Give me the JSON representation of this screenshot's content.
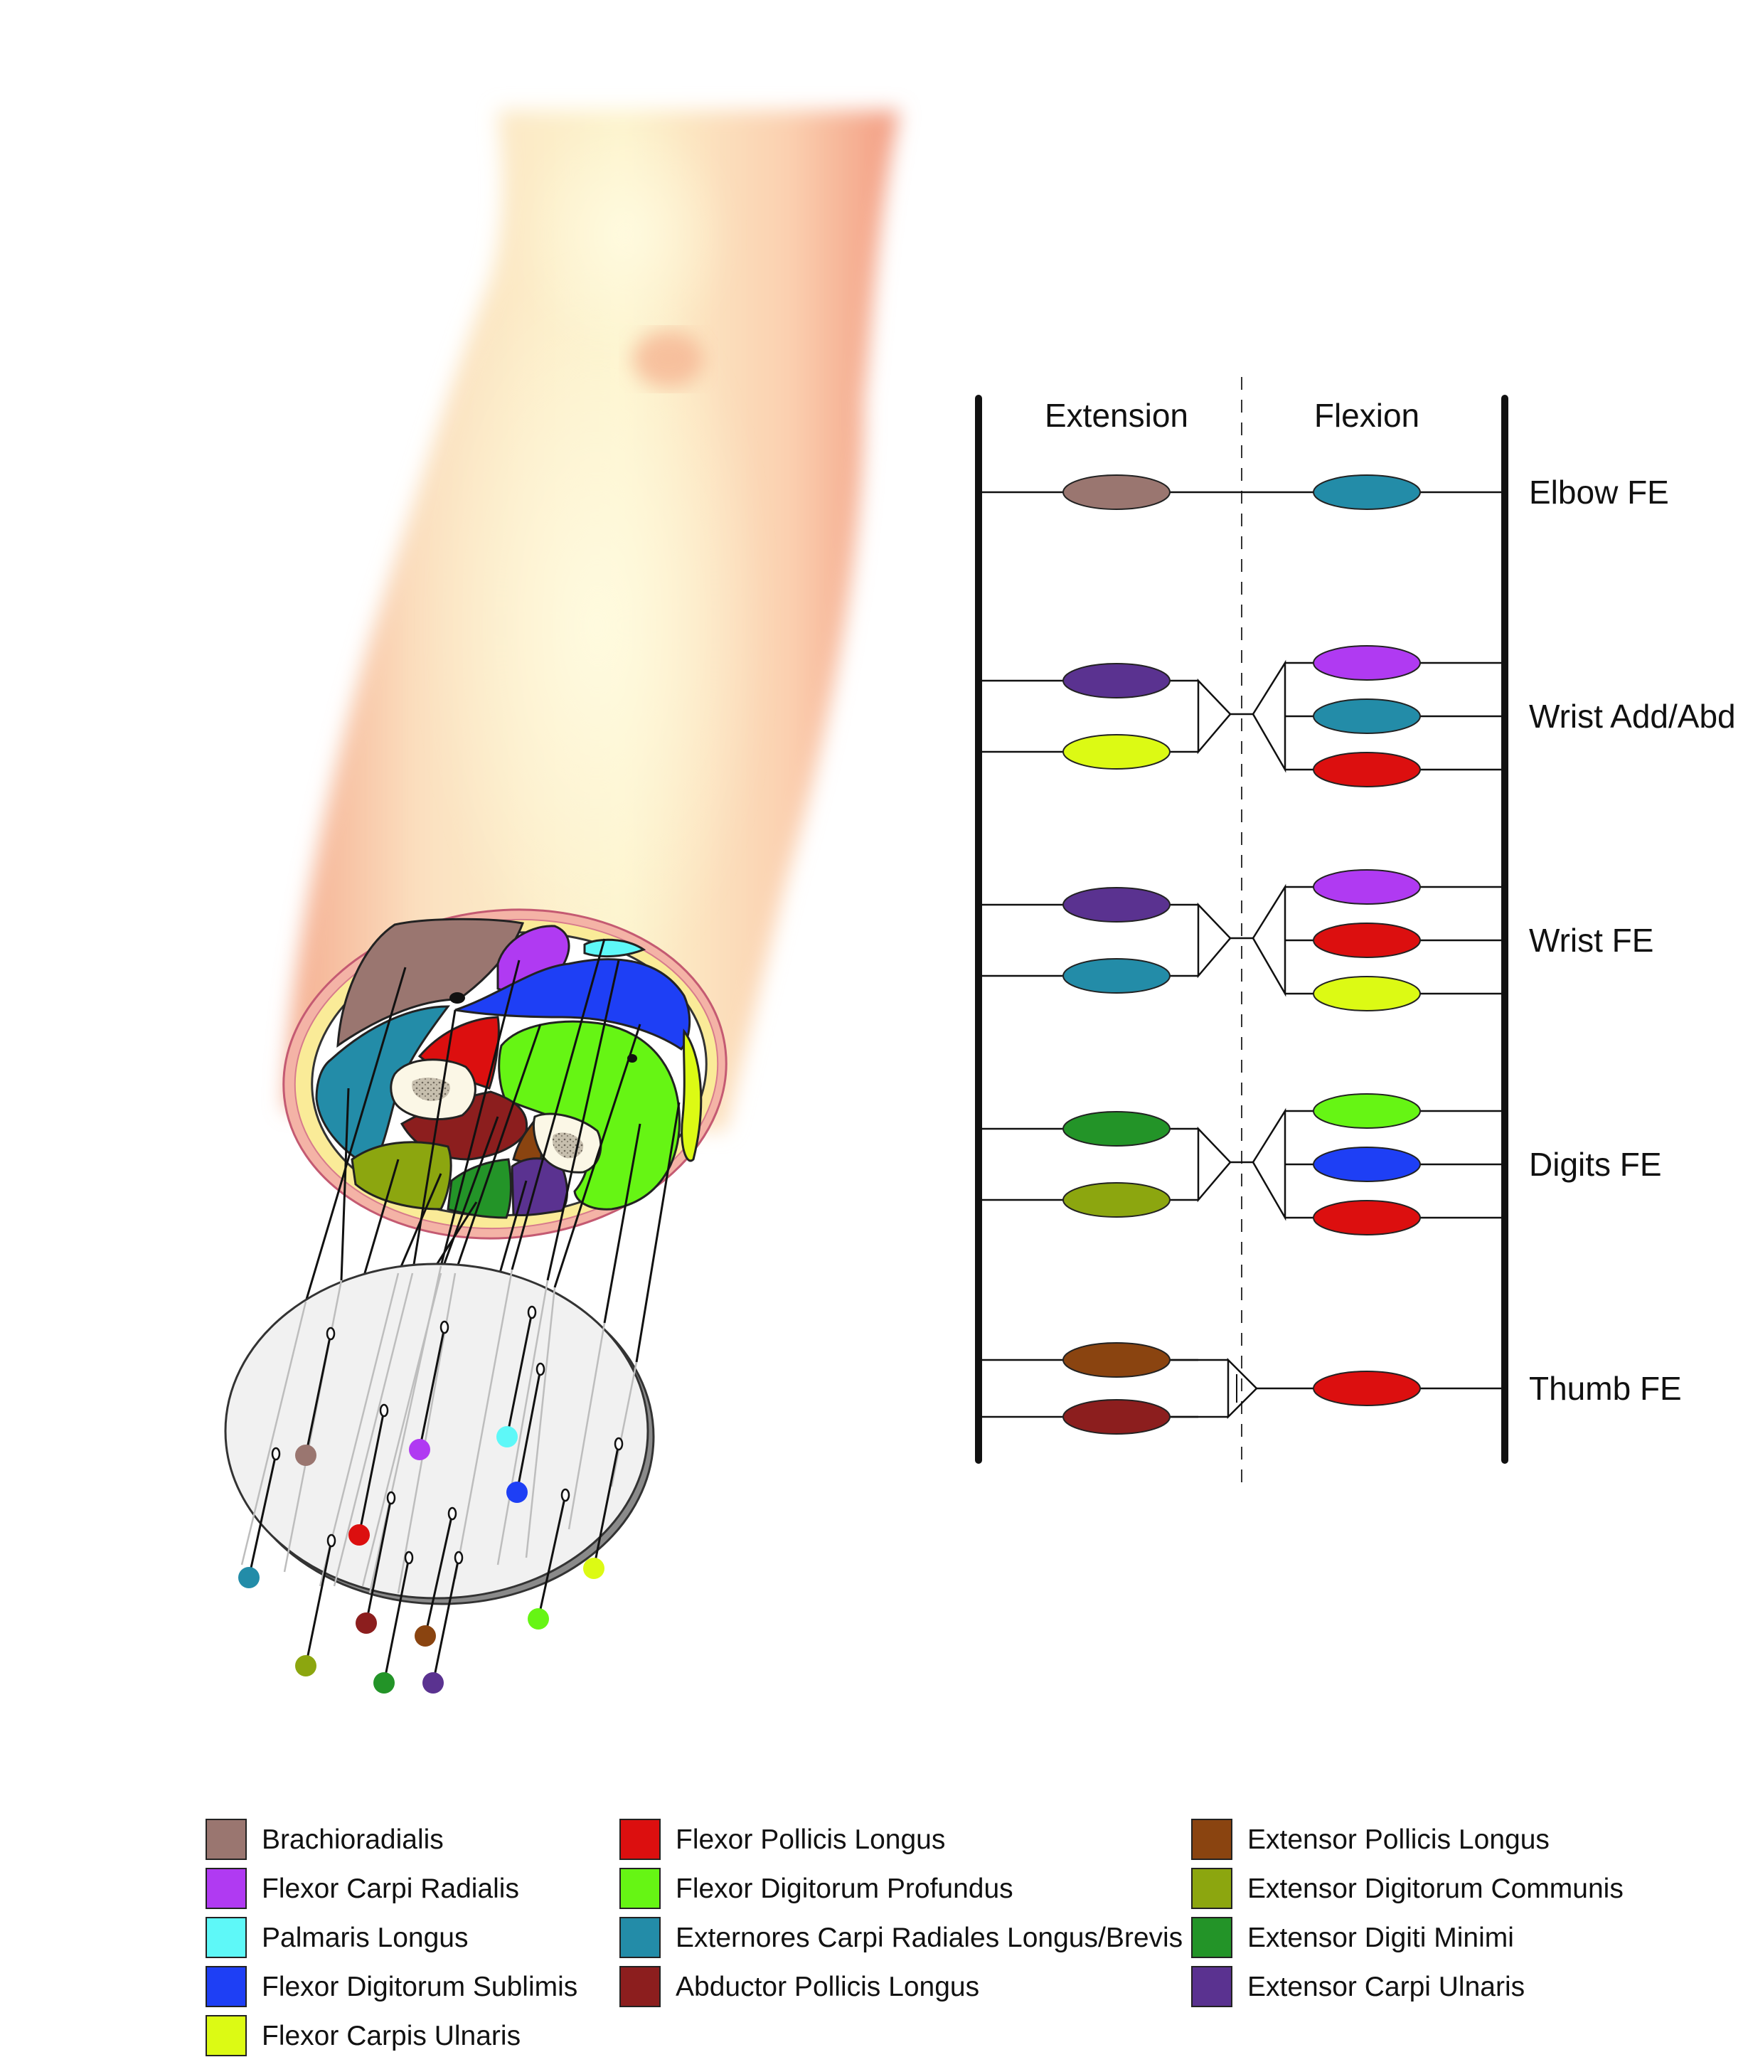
{
  "diagram": {
    "headers": {
      "extension": "Extension",
      "flexion": "Flexion"
    },
    "rows": [
      {
        "label": "Elbow FE",
        "extension": [
          "Brachioradialis"
        ],
        "flexion": [
          "Externores Carpi Radiales Longus/Brevis"
        ]
      },
      {
        "label": "Wrist Add/Abd",
        "extension": [
          "Extensor Carpi Ulnaris",
          "Flexor Carpis Ulnaris"
        ],
        "flexion": [
          "Flexor Carpi Radialis",
          "Externores Carpi Radiales Longus/Brevis",
          "Flexor Pollicis Longus"
        ]
      },
      {
        "label": "Wrist FE",
        "extension": [
          "Extensor Carpi Ulnaris",
          "Externores Carpi Radiales Longus/Brevis"
        ],
        "flexion": [
          "Flexor Carpi Radialis",
          "Flexor Pollicis Longus",
          "Flexor Carpis Ulnaris"
        ]
      },
      {
        "label": "Digits FE",
        "extension": [
          "Extensor Digiti Minimi",
          "Extensor Digitorum Communis"
        ],
        "flexion": [
          "Flexor Digitorum Profundus",
          "Flexor Digitorum Sublimis",
          "Flexor Pollicis Longus"
        ]
      },
      {
        "label": "Thumb FE",
        "extension": [
          "Extensor Pollicis Longus",
          "Abductor Pollicis Longus"
        ],
        "flexion": [
          "Flexor Pollicis Longus"
        ]
      }
    ]
  },
  "legend": {
    "columns": [
      [
        {
          "name": "Brachioradialis",
          "color": "#9a7670"
        },
        {
          "name": "Flexor Carpi Radialis",
          "color": "#b03af2"
        },
        {
          "name": "Palmaris Longus",
          "color": "#5ef8f8"
        },
        {
          "name": "Flexor Digitorum Sublimis",
          "color": "#1e3ff5"
        },
        {
          "name": "Flexor Carpis Ulnaris",
          "color": "#dcfa14"
        }
      ],
      [
        {
          "name": "Flexor Pollicis Longus",
          "color": "#dc0f0f"
        },
        {
          "name": "Flexor Digitorum Profundus",
          "color": "#66f514"
        },
        {
          "name": "Externores Carpi Radiales Longus/Brevis",
          "color": "#238ca8"
        },
        {
          "name": "Abductor Pollicis Longus",
          "color": "#8c1e1e"
        }
      ],
      [
        {
          "name": "Extensor Pollicis Longus",
          "color": "#8a4410"
        },
        {
          "name": "Extensor Digitorum Communis",
          "color": "#8ca60f"
        },
        {
          "name": "Extensor Digiti Minimi",
          "color": "#239428"
        },
        {
          "name": "Extensor Carpi Ulnaris",
          "color": "#5a3290"
        }
      ]
    ]
  }
}
